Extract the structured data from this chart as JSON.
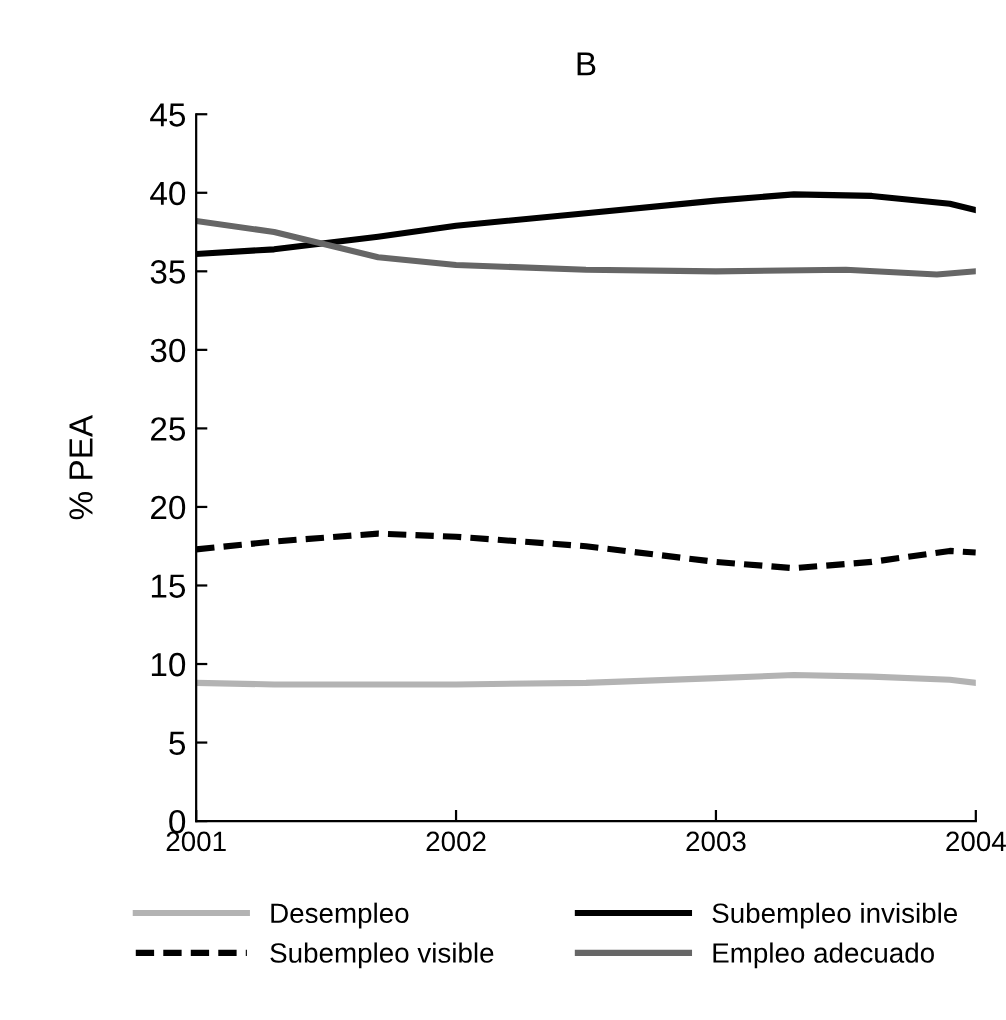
{
  "chart_data": {
    "type": "line",
    "title": "B",
    "ylabel": "% PEA",
    "xlim": [
      2001,
      2004
    ],
    "xticks": [
      2001,
      2002,
      2003,
      2004
    ],
    "ylim": [
      0,
      45
    ],
    "yticks": [
      0,
      5,
      10,
      15,
      20,
      25,
      30,
      35,
      40,
      45
    ],
    "grid": false,
    "legend": "bottom",
    "marker": "none",
    "series": [
      {
        "name": "Desempleo",
        "color": "#b3b3b3",
        "line_style": "solid",
        "x": [
          2001,
          2001.3,
          2001.7,
          2002,
          2002.5,
          2003,
          2003.3,
          2003.6,
          2003.9,
          2004
        ],
        "values": [
          8.8,
          8.7,
          8.7,
          8.7,
          8.8,
          9.1,
          9.3,
          9.2,
          9.0,
          8.8
        ]
      },
      {
        "name": "Subempleo visible",
        "color": "#000000",
        "line_style": "dashed",
        "x": [
          2001,
          2001.3,
          2001.7,
          2002,
          2002.5,
          2003,
          2003.3,
          2003.6,
          2003.9,
          2004
        ],
        "values": [
          17.3,
          17.8,
          18.3,
          18.1,
          17.5,
          16.5,
          16.1,
          16.5,
          17.2,
          17.1
        ]
      },
      {
        "name": "Subempleo invisible",
        "color": "#000000",
        "line_style": "solid",
        "x": [
          2001,
          2001.3,
          2001.7,
          2002,
          2002.5,
          2003,
          2003.3,
          2003.6,
          2003.9,
          2004
        ],
        "values": [
          36.1,
          36.4,
          37.2,
          37.9,
          38.7,
          39.5,
          39.9,
          39.8,
          39.3,
          38.9
        ]
      },
      {
        "name": "Empleo adecuado",
        "color": "#666666",
        "line_style": "solid",
        "x": [
          2001,
          2001.3,
          2001.7,
          2002,
          2002.5,
          2003,
          2003.5,
          2003.85,
          2004
        ],
        "values": [
          38.2,
          37.5,
          35.9,
          35.4,
          35.1,
          35.0,
          35.1,
          34.8,
          35.0
        ]
      }
    ]
  }
}
